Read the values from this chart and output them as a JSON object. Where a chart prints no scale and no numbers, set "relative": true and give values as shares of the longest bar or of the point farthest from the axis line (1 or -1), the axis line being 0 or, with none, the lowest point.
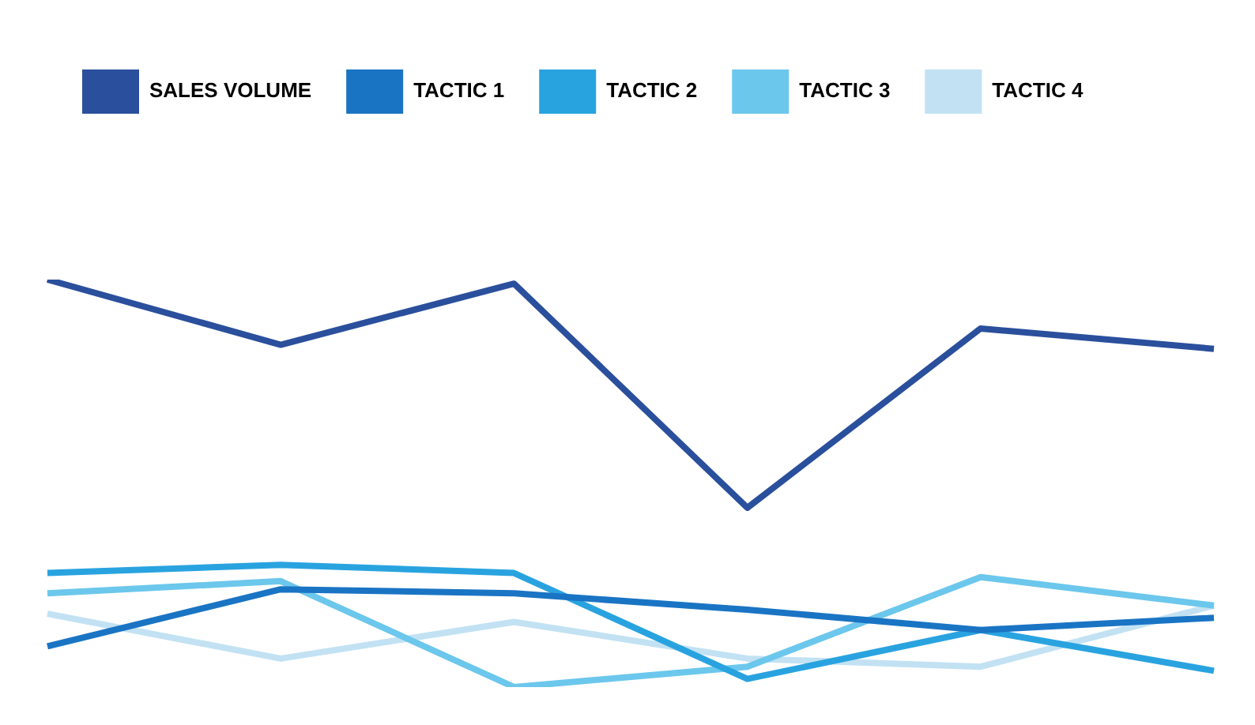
{
  "chart_data": {
    "type": "line",
    "relative": true,
    "categories": [
      null,
      null,
      null,
      null,
      null,
      null
    ],
    "legend": "top",
    "grid": false,
    "marker": "none",
    "line_style": "solid",
    "series": [
      {
        "name": "SALES VOLUME",
        "color": "#2a4f9c",
        "values": [
          1.0,
          0.84,
          0.99,
          0.44,
          0.88,
          0.83
        ]
      },
      {
        "name": "TACTIC 1",
        "color": "#1a74c4",
        "values": [
          0.1,
          0.24,
          0.23,
          0.19,
          0.14,
          0.17
        ]
      },
      {
        "name": "TACTIC 2",
        "color": "#29a3e0",
        "values": [
          0.28,
          0.3,
          0.28,
          0.02,
          0.14,
          0.04
        ]
      },
      {
        "name": "TACTIC 3",
        "color": "#6cc7ec",
        "values": [
          0.23,
          0.26,
          0.0,
          0.05,
          0.27,
          0.2
        ]
      },
      {
        "name": "TACTIC 4",
        "color": "#c2e2f3",
        "values": [
          0.18,
          0.07,
          0.16,
          0.07,
          0.05,
          0.2
        ]
      }
    ]
  }
}
